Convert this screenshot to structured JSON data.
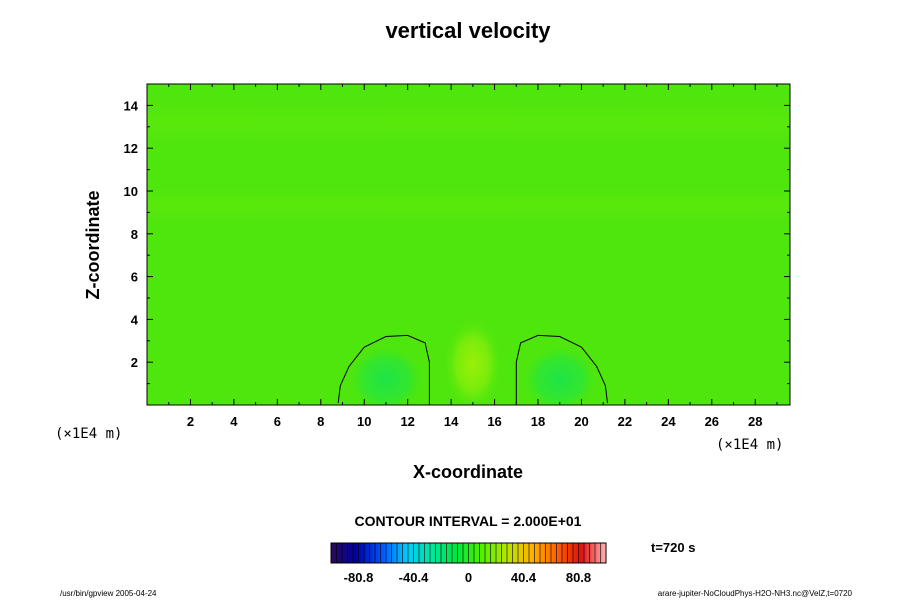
{
  "chart_data": {
    "type": "heatmap",
    "title": "vertical velocity",
    "xlabel": "X-coordinate",
    "ylabel": "Z-coordinate",
    "x_unit_label": "(×1E4 m)",
    "y_unit_label": "(×1E4 m)",
    "xlim": [
      0,
      29.6
    ],
    "ylim": [
      0,
      15
    ],
    "x_ticks": [
      2,
      4,
      6,
      8,
      10,
      12,
      14,
      16,
      18,
      20,
      22,
      24,
      26,
      28
    ],
    "y_ticks": [
      2,
      4,
      6,
      8,
      10,
      12,
      14
    ],
    "contour_interval_label": "CONTOUR INTERVAL = 2.000E+01",
    "time_label": "t=720 s",
    "colorbar": {
      "min": -101,
      "max": 101,
      "ticks": [
        -80.8,
        -40.4,
        0,
        40.4,
        80.8
      ],
      "tick_labels": [
        "-80.8",
        "-40.4",
        "0",
        "40.4",
        "80.8"
      ],
      "colors": [
        "#2a0a5a",
        "#0000a0",
        "#0050ff",
        "#00c8ff",
        "#00e6a0",
        "#00e640",
        "#50f000",
        "#b4e600",
        "#ffb400",
        "#ff6400",
        "#e01010",
        "#ffb4b4"
      ]
    },
    "background_color": "#4fe60d",
    "cells": [
      {
        "x": 15.0,
        "z": 1.9,
        "value": 20
      },
      {
        "x": 11.0,
        "z": 1.2,
        "value": -10
      },
      {
        "x": 19.0,
        "z": 1.2,
        "value": -10
      }
    ],
    "contours": [
      {
        "level": 0,
        "points": [
          [
            8.8,
            0.1
          ],
          [
            8.9,
            0.9
          ],
          [
            9.3,
            1.8
          ],
          [
            10.0,
            2.7
          ],
          [
            11.0,
            3.2
          ],
          [
            12.0,
            3.25
          ],
          [
            12.8,
            2.9
          ],
          [
            13.0,
            2.0
          ],
          [
            13.0,
            0.1
          ]
        ]
      },
      {
        "level": 0,
        "points": [
          [
            17.0,
            0.1
          ],
          [
            17.0,
            2.0
          ],
          [
            17.2,
            2.9
          ],
          [
            18.0,
            3.25
          ],
          [
            19.0,
            3.2
          ],
          [
            20.0,
            2.7
          ],
          [
            20.7,
            1.8
          ],
          [
            21.1,
            0.9
          ],
          [
            21.2,
            0.1
          ]
        ]
      }
    ]
  },
  "footer": {
    "left": "/usr/bin/gpview 2005-04-24",
    "right": "arare-jupiter-NoCloudPhys-H2O-NH3.nc@VelZ,t=0720"
  }
}
